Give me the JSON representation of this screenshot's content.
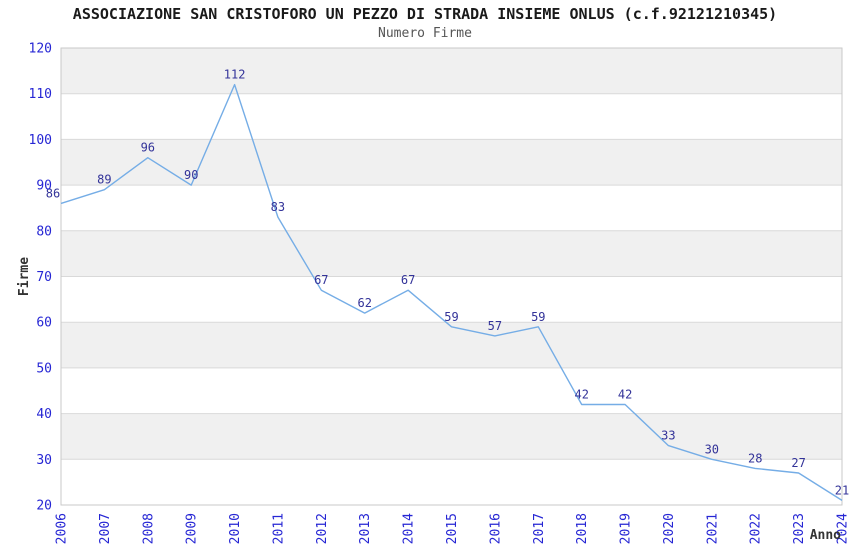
{
  "chart_data": {
    "type": "line",
    "title": "ASSOCIAZIONE SAN CRISTOFORO UN PEZZO DI STRADA INSIEME ONLUS (c.f.92121210345)",
    "subtitle": "Numero Firme",
    "xlabel": "Anno",
    "ylabel": "Firme",
    "categories": [
      "2006",
      "2007",
      "2008",
      "2009",
      "2010",
      "2011",
      "2012",
      "2013",
      "2014",
      "2015",
      "2016",
      "2017",
      "2018",
      "2019",
      "2020",
      "2021",
      "2022",
      "2023",
      "2024"
    ],
    "values": [
      86,
      89,
      96,
      90,
      112,
      83,
      67,
      62,
      67,
      59,
      57,
      59,
      42,
      42,
      33,
      30,
      28,
      27,
      21
    ],
    "ylim": [
      20,
      120
    ],
    "ytick_step": 10,
    "grid": "horizontal-bands",
    "legend_position": "none",
    "colors": {
      "line": "#75ade6",
      "band_gray": "#f0f0f0",
      "band_white": "#ffffff",
      "gridline": "#d9d9d9",
      "plot_border": "#c9c9c9",
      "tick_text": "#2626d4",
      "data_label_text": "#333399",
      "title_text": "#1a1a1a",
      "subtitle_text": "#555555",
      "axis_title_text": "#333333"
    }
  }
}
